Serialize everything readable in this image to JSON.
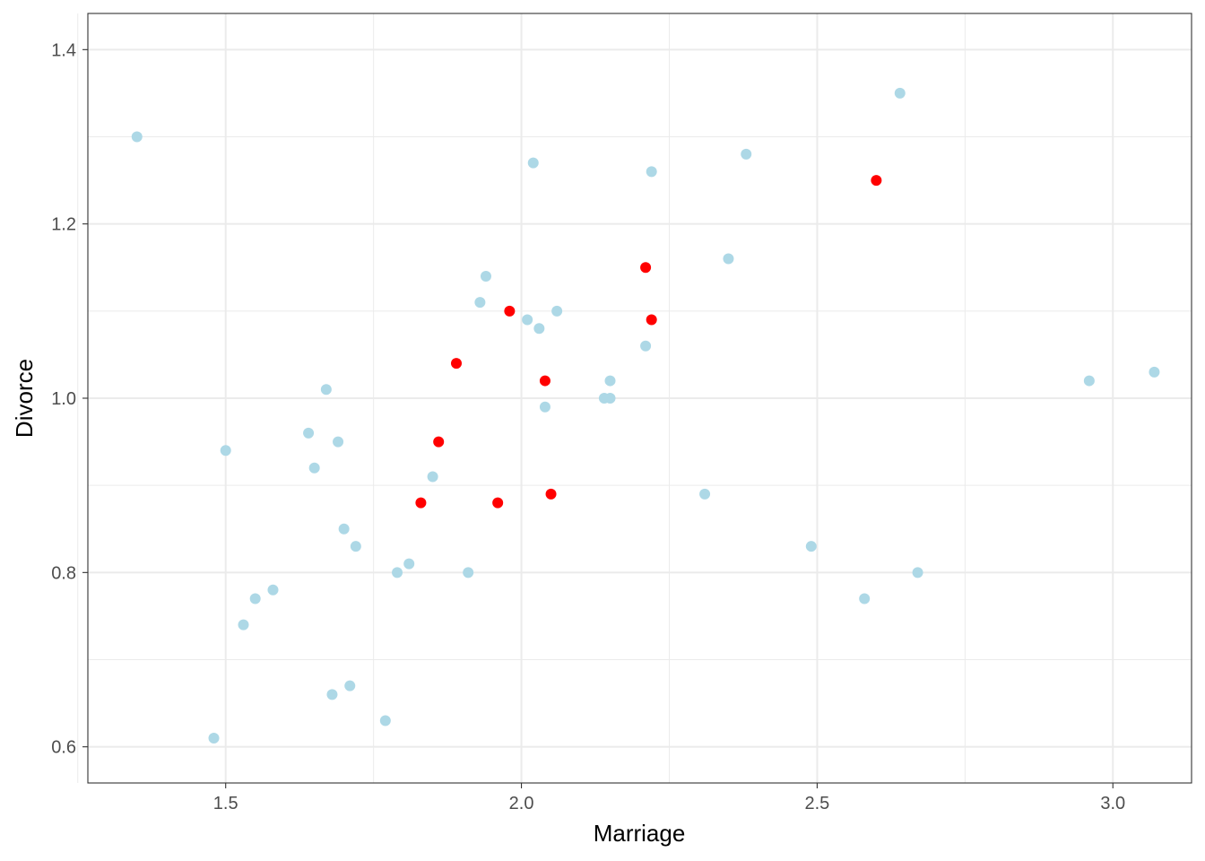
{
  "chart_data": {
    "type": "scatter",
    "title": "",
    "xlabel": "Marriage",
    "ylabel": "Divorce",
    "xlim": [
      1.267,
      3.133
    ],
    "ylim": [
      0.5585,
      1.4415
    ],
    "x_ticks": [
      1.5,
      2.0,
      2.5,
      3.0
    ],
    "x_tick_labels": [
      "1.5",
      "2.0",
      "2.5",
      "3.0"
    ],
    "x_minor_ticks": [
      1.25,
      1.75,
      2.25,
      2.75
    ],
    "y_ticks": [
      0.6,
      0.8,
      1.0,
      1.2,
      1.4
    ],
    "y_tick_labels": [
      "0.6",
      "0.8",
      "1.0",
      "1.2",
      "1.4"
    ],
    "y_minor_ticks": [
      0.7,
      0.9,
      1.1,
      1.3
    ],
    "grid": true,
    "legend": "none",
    "series": [
      {
        "color": "#add8e6",
        "points": [
          [
            1.35,
            1.3
          ],
          [
            1.5,
            0.94
          ],
          [
            1.48,
            0.61
          ],
          [
            1.53,
            0.74
          ],
          [
            1.55,
            0.77
          ],
          [
            1.58,
            0.78
          ],
          [
            1.64,
            0.96
          ],
          [
            1.65,
            0.92
          ],
          [
            1.67,
            1.01
          ],
          [
            1.68,
            0.66
          ],
          [
            1.69,
            0.95
          ],
          [
            1.7,
            0.85
          ],
          [
            1.71,
            0.67
          ],
          [
            1.72,
            0.83
          ],
          [
            1.77,
            0.63
          ],
          [
            1.79,
            0.8
          ],
          [
            1.81,
            0.81
          ],
          [
            1.85,
            0.91
          ],
          [
            1.91,
            0.8
          ],
          [
            1.93,
            1.11
          ],
          [
            1.94,
            1.14
          ],
          [
            2.01,
            1.09
          ],
          [
            2.02,
            1.27
          ],
          [
            2.03,
            1.08
          ],
          [
            2.04,
            0.99
          ],
          [
            2.06,
            1.1
          ],
          [
            2.14,
            1.0
          ],
          [
            2.15,
            1.0
          ],
          [
            2.15,
            1.02
          ],
          [
            2.21,
            1.06
          ],
          [
            2.22,
            1.26
          ],
          [
            2.31,
            0.89
          ],
          [
            2.35,
            1.16
          ],
          [
            2.38,
            1.28
          ],
          [
            2.49,
            0.83
          ],
          [
            2.58,
            0.77
          ],
          [
            2.64,
            1.35
          ],
          [
            2.67,
            0.8
          ],
          [
            2.96,
            1.02
          ],
          [
            3.07,
            1.03
          ]
        ]
      },
      {
        "color": "#ff0000",
        "points": [
          [
            1.83,
            0.88
          ],
          [
            1.86,
            0.95
          ],
          [
            1.89,
            1.04
          ],
          [
            1.96,
            0.88
          ],
          [
            1.98,
            1.1
          ],
          [
            2.04,
            1.02
          ],
          [
            2.05,
            0.89
          ],
          [
            2.21,
            1.15
          ],
          [
            2.22,
            1.09
          ],
          [
            2.6,
            1.25
          ]
        ]
      }
    ]
  }
}
